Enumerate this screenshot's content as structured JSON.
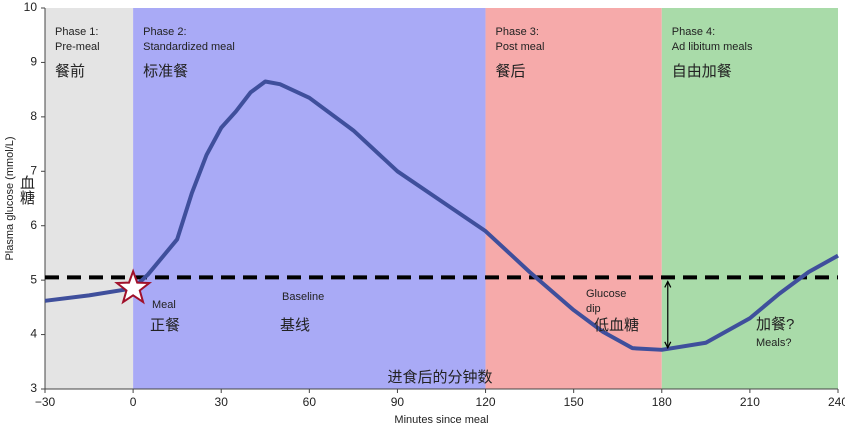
{
  "chart_data": {
    "type": "line",
    "x_label": "Minutes since meal",
    "x_label_zh": "进食后的分钟数",
    "y_label": "Plasma glucose (mmol/L)",
    "y_label_zh": "血糖",
    "xlim": [
      -30,
      240
    ],
    "ylim": [
      3,
      10
    ],
    "xticks": [
      {
        "value": -30,
        "label": "−30"
      },
      0,
      30,
      60,
      90,
      120,
      150,
      180,
      210,
      240
    ],
    "yticks": [
      3,
      4,
      5,
      6,
      7,
      8,
      9,
      10
    ],
    "phases": [
      {
        "start": -30,
        "end": 0,
        "color": "#e4e4e4",
        "lines": [
          "Phase 1:",
          "Pre-meal"
        ],
        "label_zh": "餐前"
      },
      {
        "start": 0,
        "end": 120,
        "color": "#a9aaf6",
        "lines": [
          "Phase 2:",
          "Standardized meal"
        ],
        "label_zh": "标准餐"
      },
      {
        "start": 120,
        "end": 180,
        "color": "#f6aaaa",
        "lines": [
          "Phase 3:",
          "Post meal"
        ],
        "label_zh": "餐后"
      },
      {
        "start": 180,
        "end": 240,
        "color": "#a9dba9",
        "lines": [
          "Phase 4:",
          "Ad libitum meals"
        ],
        "label_zh": "自由加餐"
      }
    ],
    "x": [
      -30,
      -15,
      0,
      5,
      15,
      20,
      25,
      30,
      35,
      40,
      45,
      50,
      60,
      75,
      90,
      105,
      120,
      135,
      150,
      160,
      170,
      180,
      195,
      210,
      220,
      230,
      240
    ],
    "series": [
      {
        "color": "#3f4f9c",
        "values": [
          4.62,
          4.72,
          4.85,
          5.1,
          5.75,
          6.6,
          7.3,
          7.8,
          8.1,
          8.45,
          8.65,
          8.6,
          8.35,
          7.75,
          7.0,
          6.45,
          5.9,
          5.15,
          4.45,
          4.05,
          3.75,
          3.72,
          3.85,
          4.3,
          4.75,
          5.15,
          5.45
        ]
      }
    ],
    "baseline": 5.05,
    "annotations": {
      "meal": "Meal",
      "meal_zh": "正餐",
      "baseline": "Baseline",
      "baseline_zh": "基线",
      "dip_lines": [
        "Glucose",
        "dip"
      ],
      "dip_zh": "低血糖",
      "snack_zh": "加餐?",
      "snack": "Meals?"
    }
  }
}
